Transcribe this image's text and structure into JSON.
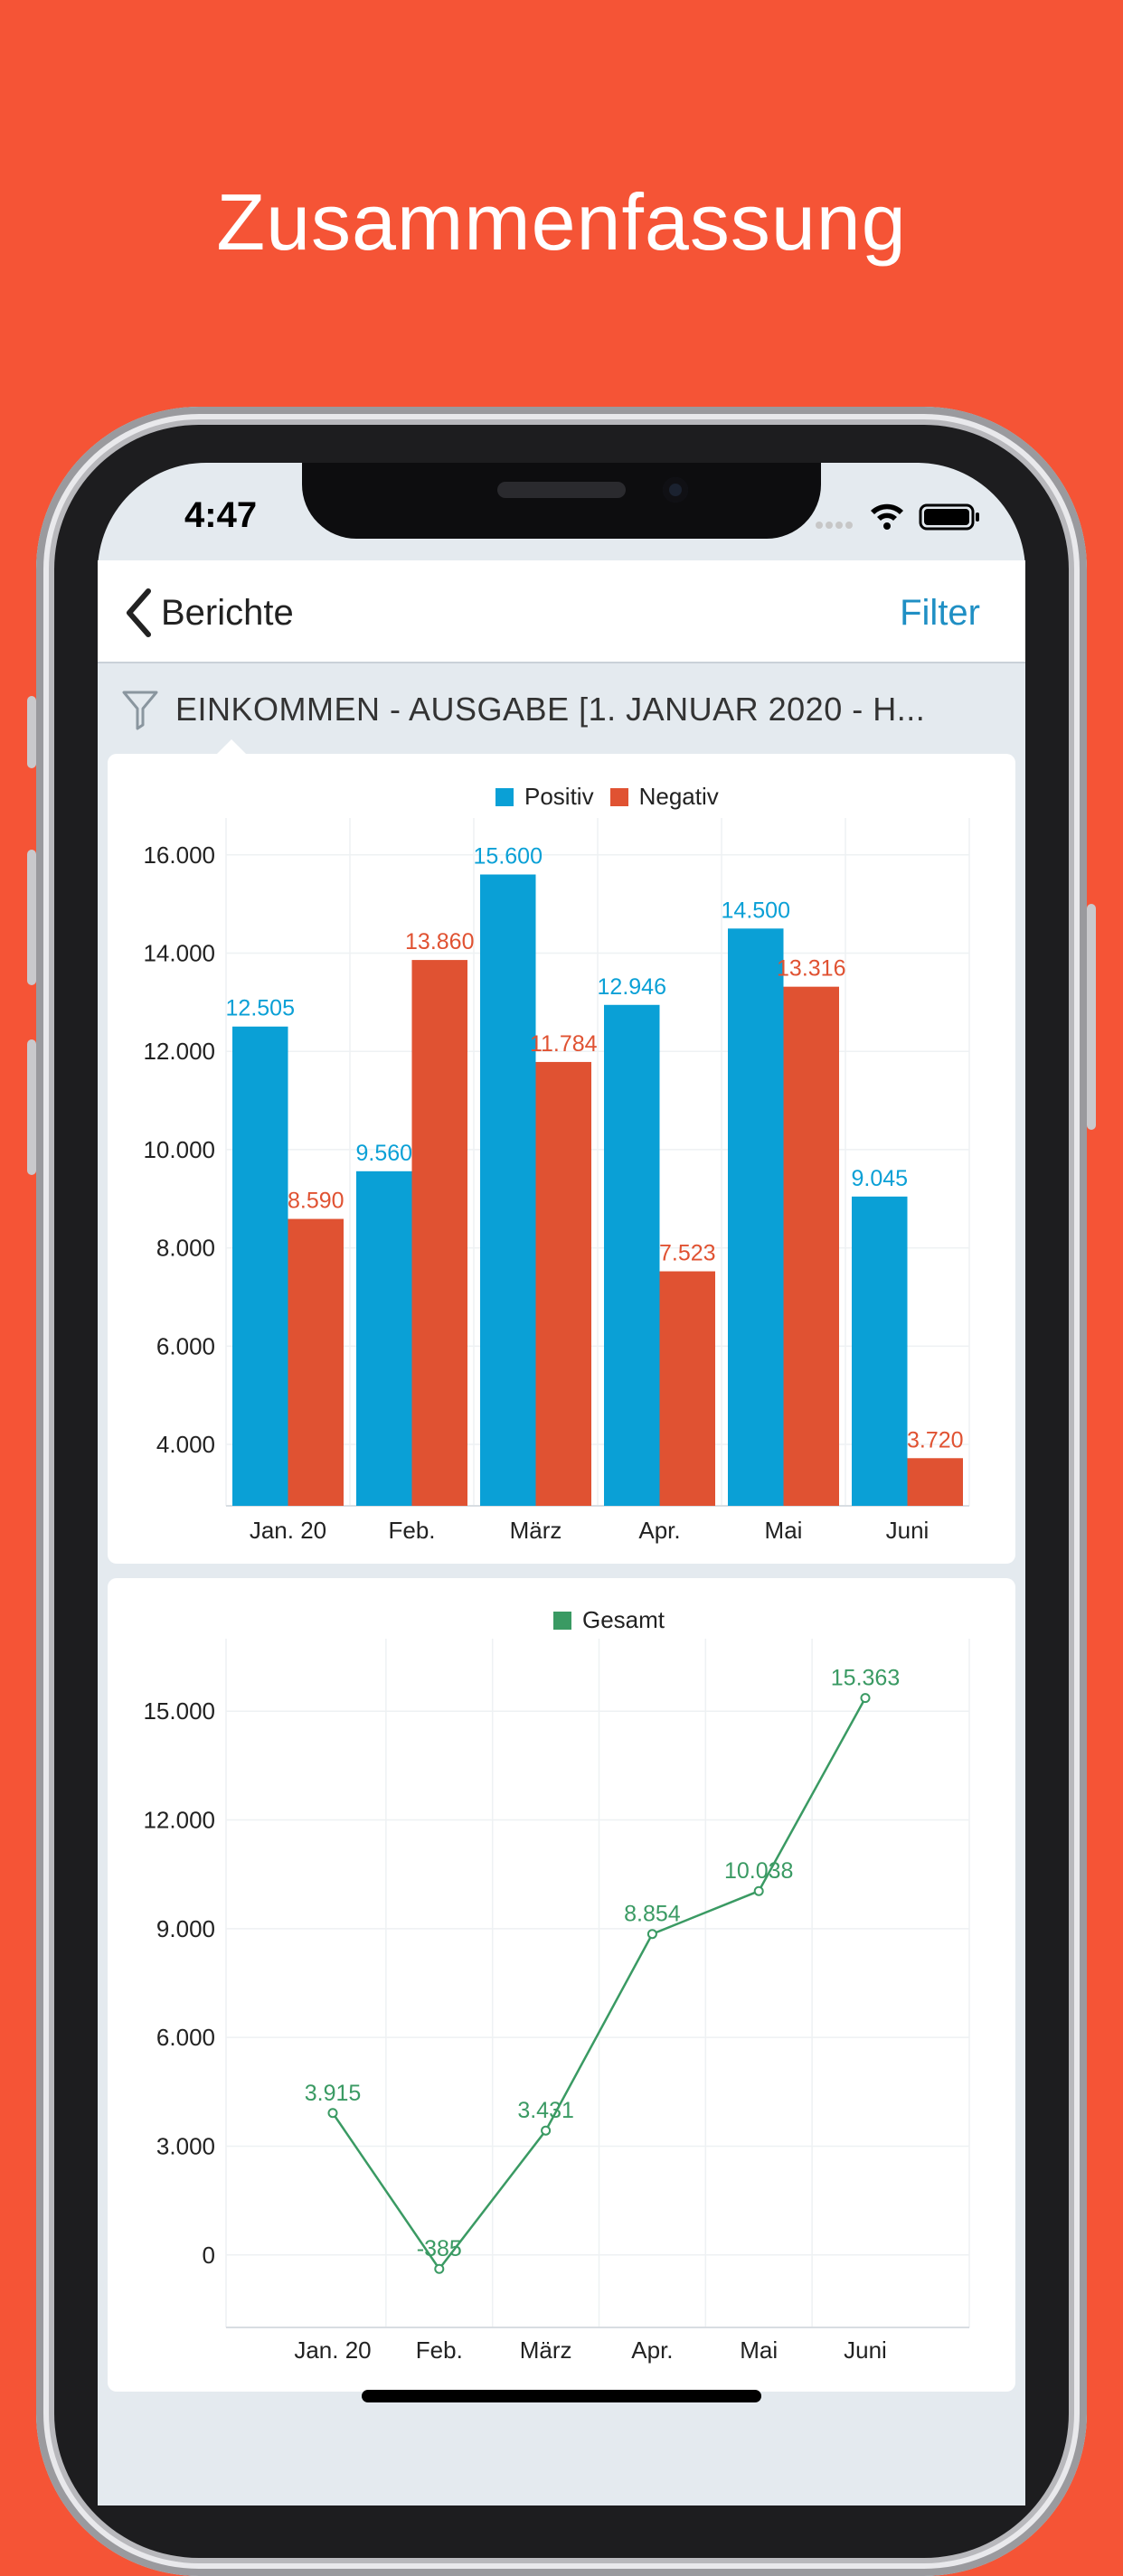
{
  "headline": "Zusammenfassung",
  "status_bar": {
    "time": "4:47"
  },
  "navbar": {
    "back_label": "Berichte",
    "filter_label": "Filter"
  },
  "filter_bar": {
    "text": "EINKOMMEN - AUSGABE [1. JANUAR 2020 - H..."
  },
  "colors": {
    "background": "#f55436",
    "positive": "#0aa0d6",
    "negative": "#e05232",
    "total": "#3a9a63",
    "link": "#1f8fc4"
  },
  "icons": {
    "back": "chevron-left-icon",
    "filter": "funnel-icon",
    "signal": "cellular-signal-icon",
    "wifi": "wifi-icon",
    "battery": "battery-icon"
  },
  "chart_data": [
    {
      "type": "bar",
      "categories": [
        "Jan. 20",
        "Feb.",
        "März",
        "Apr.",
        "Mai",
        "Juni"
      ],
      "series": [
        {
          "name": "Positiv",
          "values": [
            12505,
            9560,
            15600,
            12946,
            14500,
            9045
          ],
          "labels": [
            "12.505",
            "9.560",
            "15.600",
            "12.946",
            "14.500",
            "9.045"
          ]
        },
        {
          "name": "Negativ",
          "values": [
            8590,
            13860,
            11784,
            7523,
            13316,
            3720
          ],
          "labels": [
            "8.590",
            "13.860",
            "11.784",
            "7.523",
            "13.316",
            "3.720"
          ]
        }
      ],
      "yticks": [
        4000,
        6000,
        8000,
        10000,
        12000,
        14000,
        16000
      ],
      "ytick_labels": [
        "4.000",
        "6.000",
        "8.000",
        "10.000",
        "12.000",
        "14.000",
        "16.000"
      ],
      "ylim": [
        2750,
        16750
      ],
      "legend": "top-center",
      "grid": true
    },
    {
      "type": "line",
      "categories": [
        "Jan. 20",
        "Feb.",
        "März",
        "Apr.",
        "Mai",
        "Juni"
      ],
      "series": [
        {
          "name": "Gesamt",
          "values": [
            3915,
            -385,
            3431,
            8854,
            10038,
            15363
          ],
          "labels": [
            "3.915",
            "-385",
            "3.431",
            "8.854",
            "10.038",
            "15.363"
          ]
        }
      ],
      "yticks": [
        0,
        3000,
        6000,
        9000,
        12000,
        15000
      ],
      "ytick_labels": [
        "0",
        "3.000",
        "6.000",
        "9.000",
        "12.000",
        "15.000"
      ],
      "ylim": [
        -2000,
        17000
      ],
      "legend": "top-center",
      "grid": true
    }
  ]
}
